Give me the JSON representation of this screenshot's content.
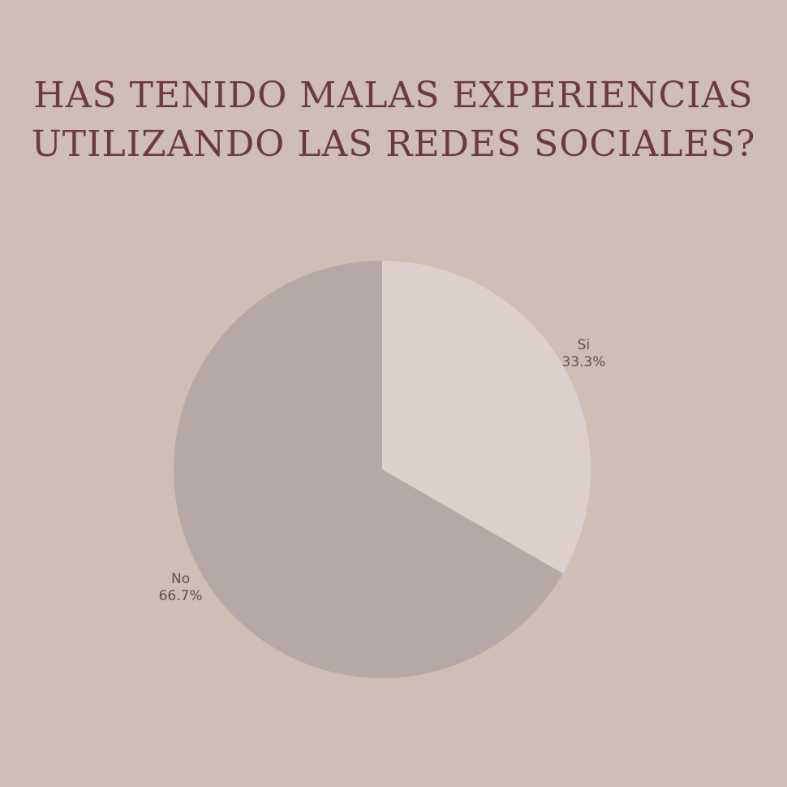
{
  "chart_data": {
    "type": "pie",
    "title": [
      "HAS TENIDO MALAS EXPERIENCIAS",
      "UTILIZANDO LAS REDES SOCIALES?"
    ],
    "slices": [
      {
        "label": "Si",
        "value": 33.3,
        "value_label": "33.3%",
        "color": "#ddd0cc"
      },
      {
        "label": "No",
        "value": 66.7,
        "value_label": "66.7%",
        "color": "#b5a8a7"
      }
    ],
    "start_angle_deg": 0,
    "direction": "clockwise"
  },
  "colors": {
    "background": "#cfbdb6",
    "title": "#6b3a3f",
    "label": "#5a5052"
  }
}
